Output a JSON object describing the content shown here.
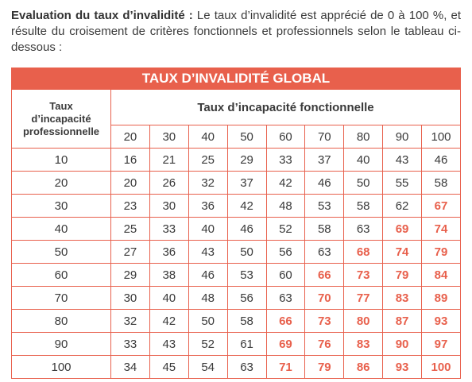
{
  "intro": {
    "lead": "Evaluation du taux d’invalidité :",
    "text": "Le taux d’invalidité est apprécié de 0 à 100 %, et résulte du croisement de critères fonctionnels et professionnels selon le tableau ci-dessous :"
  },
  "table": {
    "title": "TAUX D’INVALIDITÉ GLOBAL",
    "highlight_color": "#e8604c",
    "row_header": [
      "Taux",
      "d’incapacité",
      "professionnelle"
    ],
    "column_header": "Taux d’incapacité fonctionnelle",
    "columns": [
      20,
      30,
      40,
      50,
      60,
      70,
      80,
      90,
      100
    ],
    "rows": [
      {
        "label": 10,
        "values": [
          16,
          21,
          25,
          29,
          33,
          37,
          40,
          43,
          46
        ],
        "highlighted": [
          false,
          false,
          false,
          false,
          false,
          false,
          false,
          false,
          false
        ]
      },
      {
        "label": 20,
        "values": [
          20,
          26,
          32,
          37,
          42,
          46,
          50,
          55,
          58
        ],
        "highlighted": [
          false,
          false,
          false,
          false,
          false,
          false,
          false,
          false,
          false
        ]
      },
      {
        "label": 30,
        "values": [
          23,
          30,
          36,
          42,
          48,
          53,
          58,
          62,
          67
        ],
        "highlighted": [
          false,
          false,
          false,
          false,
          false,
          false,
          false,
          false,
          true
        ]
      },
      {
        "label": 40,
        "values": [
          25,
          33,
          40,
          46,
          52,
          58,
          63,
          69,
          74
        ],
        "highlighted": [
          false,
          false,
          false,
          false,
          false,
          false,
          false,
          true,
          true
        ]
      },
      {
        "label": 50,
        "values": [
          27,
          36,
          43,
          50,
          56,
          63,
          68,
          74,
          79
        ],
        "highlighted": [
          false,
          false,
          false,
          false,
          false,
          false,
          true,
          true,
          true
        ]
      },
      {
        "label": 60,
        "values": [
          29,
          38,
          46,
          53,
          60,
          66,
          73,
          79,
          84
        ],
        "highlighted": [
          false,
          false,
          false,
          false,
          false,
          true,
          true,
          true,
          true
        ]
      },
      {
        "label": 70,
        "values": [
          30,
          40,
          48,
          56,
          63,
          70,
          77,
          83,
          89
        ],
        "highlighted": [
          false,
          false,
          false,
          false,
          false,
          true,
          true,
          true,
          true
        ]
      },
      {
        "label": 80,
        "values": [
          32,
          42,
          50,
          58,
          66,
          73,
          80,
          87,
          93
        ],
        "highlighted": [
          false,
          false,
          false,
          false,
          true,
          true,
          true,
          true,
          true
        ]
      },
      {
        "label": 90,
        "values": [
          33,
          43,
          52,
          61,
          69,
          76,
          83,
          90,
          97
        ],
        "highlighted": [
          false,
          false,
          false,
          false,
          true,
          true,
          true,
          true,
          true
        ]
      },
      {
        "label": 100,
        "values": [
          34,
          45,
          54,
          63,
          71,
          79,
          86,
          93,
          100
        ],
        "highlighted": [
          false,
          false,
          false,
          false,
          true,
          true,
          true,
          true,
          true
        ]
      }
    ]
  }
}
